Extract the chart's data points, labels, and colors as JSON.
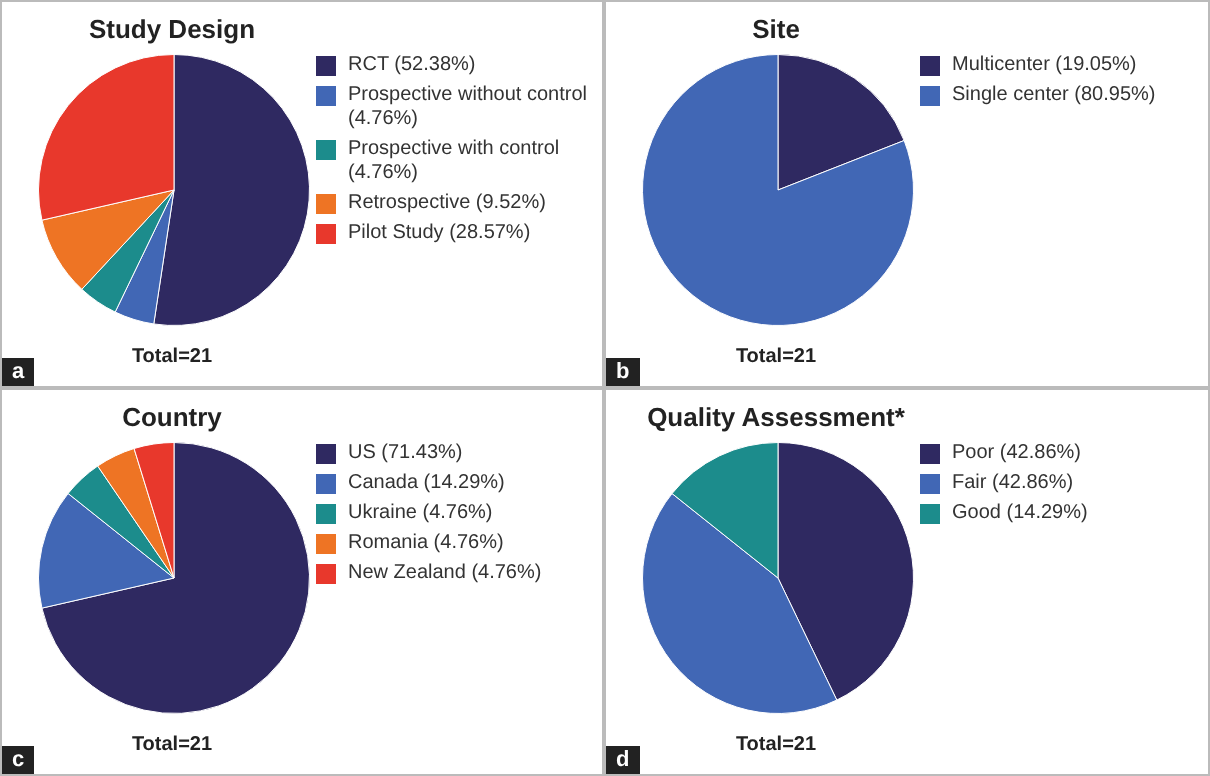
{
  "chart_data": [
    {
      "type": "pie",
      "title": "Study Design",
      "categories": [
        "RCT (52.38%)",
        "Prospective without control (4.76%)",
        "Prospective with control (4.76%)",
        "Retrospective (9.52%)",
        "Pilot Study (28.57%)"
      ],
      "values": [
        52.38,
        4.76,
        4.76,
        9.52,
        28.57
      ],
      "colors": [
        "#2f2961",
        "#4167b5",
        "#1c8c8c",
        "#ee7424",
        "#e8382c"
      ],
      "legend": "right",
      "annotations": [
        "Total=21",
        "a"
      ]
    },
    {
      "type": "pie",
      "title": "Site",
      "categories": [
        "Multicenter (19.05%)",
        "Single center (80.95%)"
      ],
      "values": [
        19.05,
        80.95
      ],
      "colors": [
        "#2f2961",
        "#4167b5"
      ],
      "legend": "right",
      "annotations": [
        "Total=21",
        "b"
      ]
    },
    {
      "type": "pie",
      "title": "Country",
      "categories": [
        "US (71.43%)",
        "Canada (14.29%)",
        "Ukraine (4.76%)",
        "Romania (4.76%)",
        "New Zealand (4.76%)"
      ],
      "values": [
        71.43,
        14.29,
        4.76,
        4.76,
        4.76
      ],
      "colors": [
        "#2f2961",
        "#4167b5",
        "#1c8c8c",
        "#ee7424",
        "#e8382c"
      ],
      "legend": "right",
      "annotations": [
        "Total=21",
        "c"
      ]
    },
    {
      "type": "pie",
      "title": "Quality Assessment*",
      "categories": [
        "Poor (42.86%)",
        "Fair (42.86%)",
        "Good (14.29%)"
      ],
      "values": [
        42.86,
        42.86,
        14.29
      ],
      "colors": [
        "#2f2961",
        "#4167b5",
        "#1c8c8c"
      ],
      "legend": "right",
      "annotations": [
        "Total=21",
        "d"
      ]
    }
  ]
}
